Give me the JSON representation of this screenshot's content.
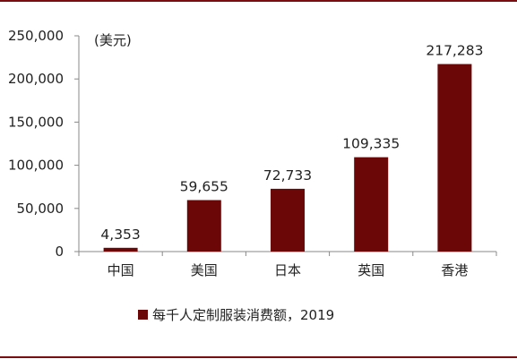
{
  "chart_data": {
    "type": "bar",
    "unit_label": "(美元)",
    "categories": [
      "中国",
      "美国",
      "日本",
      "英国",
      "香港"
    ],
    "series": [
      {
        "name": "每千人定制服装消费额，2019",
        "values": [
          4353,
          59655,
          72733,
          109335,
          217283
        ],
        "color": "#6b0707"
      }
    ],
    "data_labels": [
      "4,353",
      "59,655",
      "72,733",
      "109,335",
      "217,283"
    ],
    "ylim": [
      0,
      250000
    ],
    "yticks": [
      0,
      50000,
      100000,
      150000,
      200000,
      250000
    ],
    "ytick_labels": [
      "0",
      "50,000",
      "100,000",
      "150,000",
      "200,000",
      "250,000"
    ],
    "grid": false,
    "legend_position": "bottom"
  },
  "colors": {
    "bar": "#6b0707",
    "rule": "#7b0c10",
    "axis": "#888888"
  }
}
